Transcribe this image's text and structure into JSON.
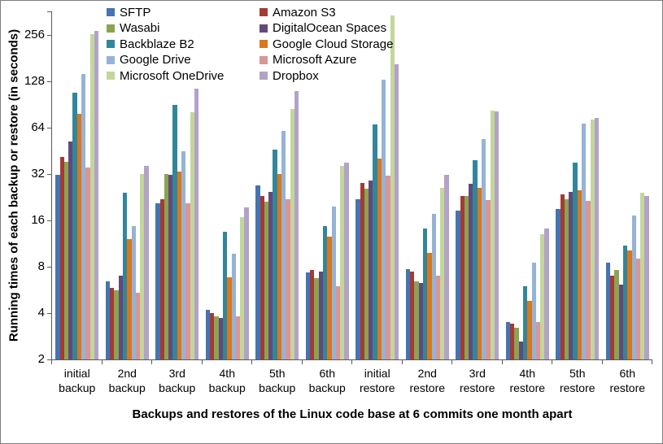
{
  "chart_data": {
    "type": "bar",
    "scale": "log2",
    "ylim": [
      2,
      362
    ],
    "yticks": [
      2,
      4,
      8,
      16,
      32,
      64,
      128,
      256
    ],
    "grid": false,
    "legend_position": "top-inside-two-columns",
    "ylabel": "Running times of each backup or restore (in seconds)",
    "xlabel": "Backups and restores of the Linux code base at 6 commits one month apart",
    "categories": [
      "initial backup",
      "2nd backup",
      "3rd backup",
      "4th backup",
      "5th backup",
      "6th backup",
      "initial restore",
      "2nd restore",
      "3rd restore",
      "4th restore",
      "5th restore",
      "6th restore"
    ],
    "series": [
      {
        "name": "SFTP",
        "color": "#4673B1",
        "values": [
          31.5,
          6.4,
          20.5,
          4.2,
          27,
          7.3,
          22,
          7.7,
          18.5,
          3.5,
          19,
          8.5
        ]
      },
      {
        "name": "Amazon S3",
        "color": "#A23B34",
        "values": [
          41,
          5.8,
          22,
          4,
          23,
          7.6,
          28,
          7.4,
          23,
          3.4,
          23.5,
          7
        ]
      },
      {
        "name": "Wasabi",
        "color": "#8CA350",
        "values": [
          38.5,
          5.6,
          32,
          3.8,
          21,
          6.7,
          25.5,
          6.4,
          23,
          3.2,
          22,
          7.6
        ]
      },
      {
        "name": "DigitalOcean Spaces",
        "color": "#62497B",
        "values": [
          52,
          7,
          31.5,
          3.7,
          24.5,
          7.4,
          29,
          6.3,
          27.5,
          2.6,
          24.5,
          6.1
        ]
      },
      {
        "name": "Backblaze B2",
        "color": "#31869B",
        "values": [
          108,
          24,
          90,
          13.5,
          46,
          14.6,
          67,
          14.2,
          39,
          6,
          38,
          11
        ]
      },
      {
        "name": "Google Cloud Storage",
        "color": "#D9771C",
        "values": [
          78,
          12,
          33,
          6.8,
          32,
          12.5,
          40,
          9.8,
          26,
          4.8,
          25,
          10.2
        ]
      },
      {
        "name": "Google Drive",
        "color": "#95B3D7",
        "values": [
          142,
          14.6,
          45,
          9.7,
          61,
          19.7,
          130,
          17.6,
          54,
          8.5,
          68,
          17.2
        ]
      },
      {
        "name": "Microsoft Azure",
        "color": "#D99694",
        "values": [
          35,
          5.4,
          20.5,
          3.8,
          22,
          6,
          31,
          7,
          21.5,
          3.5,
          21.4,
          9
        ]
      },
      {
        "name": "Microsoft OneDrive",
        "color": "#C3D69B",
        "values": [
          258,
          32,
          80,
          16.8,
          84,
          36,
          340,
          26,
          82,
          13,
          72,
          24
        ]
      },
      {
        "name": "Dropbox",
        "color": "#B2A2C7",
        "values": [
          270,
          36,
          114,
          19.4,
          110,
          38,
          165,
          31.5,
          81,
          14.2,
          74,
          23
        ]
      }
    ]
  }
}
